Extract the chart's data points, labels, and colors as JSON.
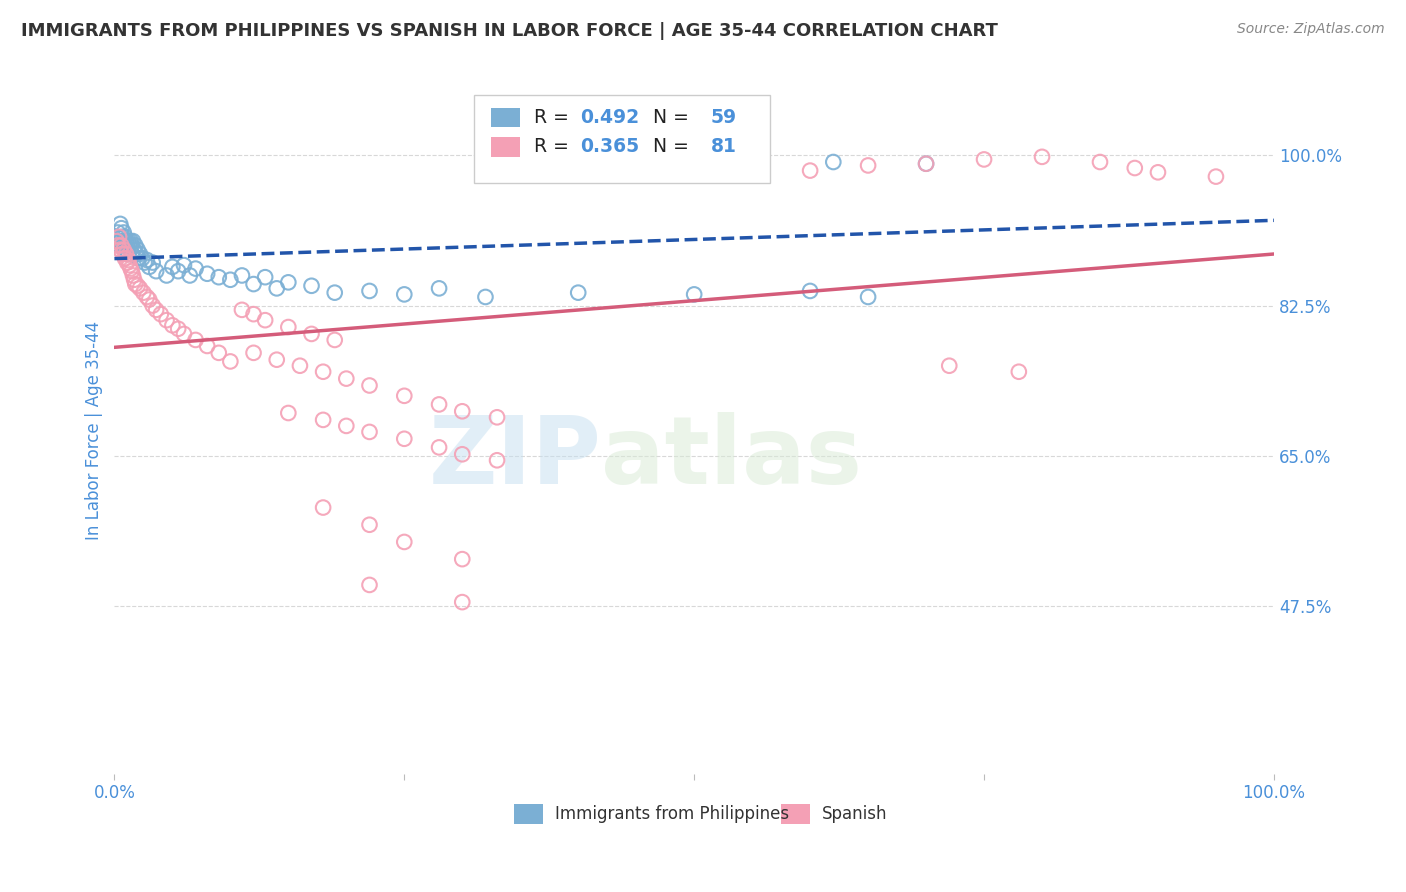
{
  "title": "IMMIGRANTS FROM PHILIPPINES VS SPANISH IN LABOR FORCE | AGE 35-44 CORRELATION CHART",
  "source": "Source: ZipAtlas.com",
  "ylabel": "In Labor Force | Age 35-44",
  "r_blue": 0.492,
  "n_blue": 59,
  "r_pink": 0.365,
  "n_pink": 81,
  "legend_labels": [
    "Immigrants from Philippines",
    "Spanish"
  ],
  "blue_color": "#7bafd4",
  "pink_color": "#f4a0b5",
  "blue_line_color": "#2255aa",
  "pink_line_color": "#d45c7a",
  "title_color": "#333333",
  "axis_label_color": "#4a90d9",
  "right_ytick_vals": [
    0.475,
    0.65,
    0.825,
    1.0
  ],
  "right_ytick_labels": [
    "47.5%",
    "65.0%",
    "82.5%",
    "100.0%"
  ],
  "xlim": [
    0.0,
    1.0
  ],
  "ylim": [
    0.28,
    1.08
  ],
  "watermark_zip": "ZIP",
  "watermark_atlas": "atlas",
  "background_color": "#ffffff",
  "grid_color": "#d8d8d8"
}
